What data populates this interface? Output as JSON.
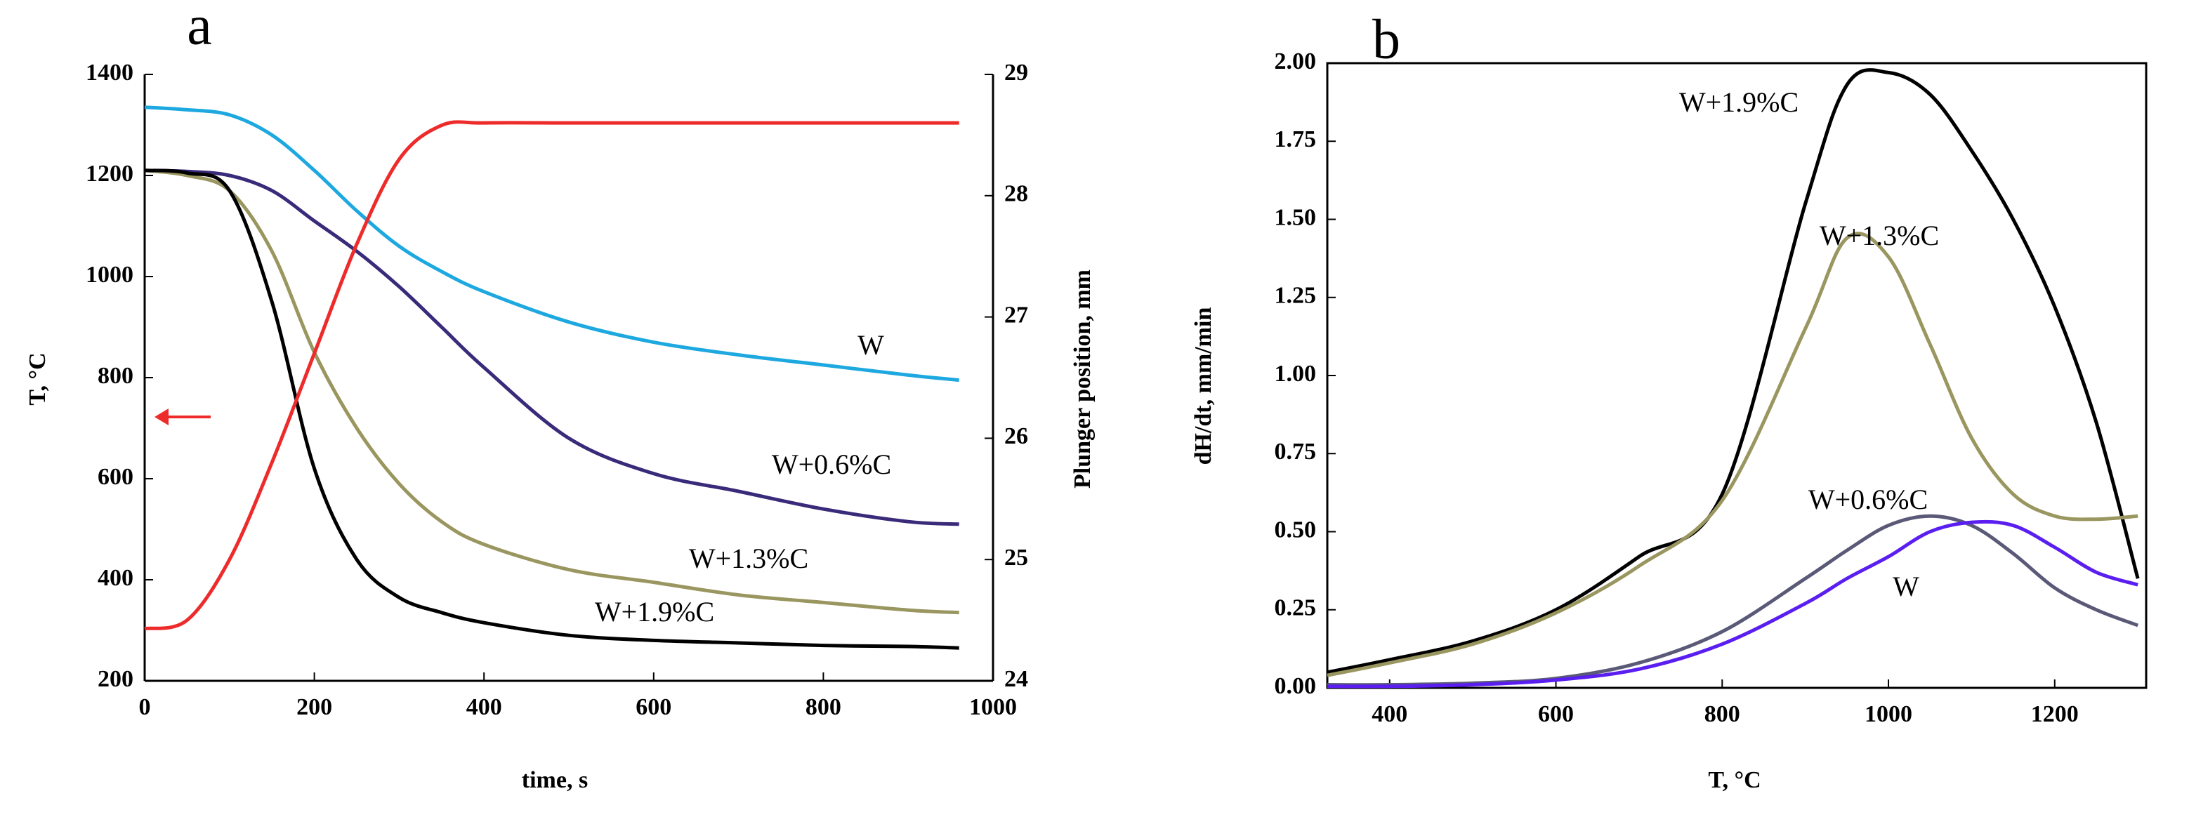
{
  "chart_data": [
    {
      "type": "line",
      "title": "a",
      "x_label": "time, s",
      "y_label": "T, °C",
      "y2_label": "Plunger position, mm",
      "x": [
        0,
        50,
        100,
        150,
        200,
        250,
        300,
        350,
        400,
        500,
        600,
        700,
        800,
        900,
        960
      ],
      "series": [
        {
          "name": "W",
          "color": "#1ea8e0",
          "values": [
            1335,
            1330,
            1320,
            1280,
            1210,
            1130,
            1060,
            1010,
            970,
            910,
            870,
            845,
            825,
            805,
            795
          ]
        },
        {
          "name": "W+0.6%C",
          "color": "#3a2a7a",
          "values": [
            1210,
            1208,
            1200,
            1170,
            1110,
            1050,
            980,
            900,
            820,
            680,
            610,
            575,
            540,
            515,
            510
          ]
        },
        {
          "name": "W+1.3%C",
          "color": "#9a9660",
          "values": [
            1210,
            1200,
            1170,
            1050,
            850,
            700,
            590,
            515,
            470,
            420,
            395,
            370,
            355,
            340,
            335
          ]
        },
        {
          "name": "W+1.9%C",
          "color": "#000000",
          "values": [
            1210,
            1205,
            1170,
            950,
            620,
            440,
            365,
            335,
            315,
            290,
            280,
            275,
            270,
            268,
            265
          ]
        },
        {
          "color": "#ee2b2b",
          "axis": "y2",
          "values": [
            24.43,
            24.5,
            25.0,
            25.8,
            26.7,
            27.6,
            28.3,
            28.58,
            28.6,
            28.6,
            28.6,
            28.6,
            28.6,
            28.6,
            28.6
          ]
        }
      ],
      "xlim": [
        0,
        1000
      ],
      "xticks": [
        0,
        200,
        400,
        600,
        800,
        1000
      ],
      "ylim": [
        200,
        1400
      ],
      "yticks": [
        200,
        400,
        600,
        800,
        1000,
        1200,
        1400
      ],
      "y2lim": [
        24,
        29
      ],
      "y2ticks": [
        24,
        25,
        26,
        27,
        28,
        29
      ]
    },
    {
      "type": "line",
      "title": "b",
      "x_label": "T, °C",
      "y_label": "dH/dt, mm/min",
      "x": [
        325,
        400,
        500,
        600,
        700,
        800,
        900,
        950,
        1000,
        1050,
        1100,
        1150,
        1200,
        1250,
        1300
      ],
      "series": [
        {
          "name": "W+1.9%C",
          "color": "#000000",
          "values": [
            0.05,
            0.09,
            0.15,
            0.25,
            0.42,
            0.62,
            1.55,
            1.93,
            1.97,
            1.9,
            1.72,
            1.5,
            1.22,
            0.85,
            0.35
          ]
        },
        {
          "name": "W+1.3%C",
          "color": "#9a9660",
          "values": [
            0.04,
            0.08,
            0.14,
            0.24,
            0.39,
            0.6,
            1.15,
            1.44,
            1.38,
            1.1,
            0.8,
            0.62,
            0.55,
            0.54,
            0.55
          ]
        },
        {
          "name": "W+0.6%C",
          "color": "#5a5a78",
          "values": [
            0.01,
            0.01,
            0.015,
            0.03,
            0.08,
            0.18,
            0.35,
            0.44,
            0.52,
            0.55,
            0.52,
            0.43,
            0.32,
            0.25,
            0.2
          ]
        },
        {
          "name": "W",
          "color": "#5a1ef0",
          "values": [
            0.005,
            0.005,
            0.01,
            0.025,
            0.06,
            0.14,
            0.27,
            0.35,
            0.42,
            0.5,
            0.53,
            0.52,
            0.45,
            0.37,
            0.33
          ]
        }
      ],
      "xlim": [
        325,
        1310
      ],
      "xticks": [
        400,
        600,
        800,
        1000,
        1200
      ],
      "ylim": [
        0,
        2
      ],
      "yticks": [
        {
          "value": 0,
          "label": "0.00"
        },
        {
          "value": 0.25,
          "label": "0.25"
        },
        {
          "value": 0.5,
          "label": "0.50"
        },
        {
          "value": 0.75,
          "label": "0.75"
        },
        {
          "value": 1,
          "label": "1.00"
        },
        {
          "value": 1.25,
          "label": "1.25"
        },
        {
          "value": 1.5,
          "label": "1.50"
        },
        {
          "value": 1.75,
          "label": "1.75"
        },
        {
          "value": 2,
          "label": "2.00"
        }
      ]
    }
  ]
}
